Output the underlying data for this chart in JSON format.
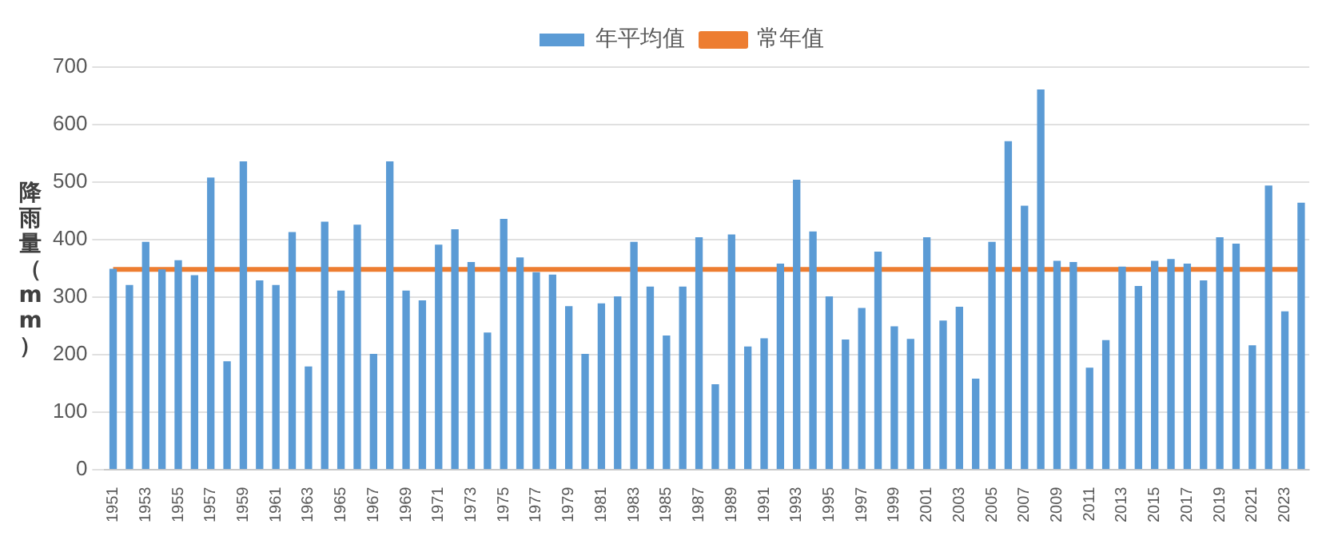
{
  "chart_data": {
    "type": "bar",
    "ylabel": "降雨量（mm）",
    "categories": [
      "1951",
      null,
      "1953",
      null,
      "1955",
      null,
      "1957",
      null,
      "1959",
      null,
      "1961",
      null,
      "1963",
      null,
      "1965",
      null,
      "1967",
      null,
      "1969",
      null,
      "1971",
      null,
      "1973",
      null,
      "1975",
      null,
      "1977",
      null,
      "1979",
      null,
      "1981",
      null,
      "1983",
      null,
      "1985",
      null,
      "1987",
      null,
      "1989",
      null,
      "1991",
      null,
      "1993",
      null,
      "1995",
      null,
      "1997",
      null,
      "1999",
      null,
      "2001",
      null,
      "2003",
      null,
      "2005",
      null,
      "2007",
      null,
      "2009",
      null,
      "2011",
      null,
      "2013",
      null,
      "2015",
      null,
      "2017",
      null,
      "2019",
      null,
      "2021",
      null,
      "2023",
      null
    ],
    "series": [
      {
        "name": "年平均值",
        "color": "#5b9bd5",
        "values": [
          348,
          320,
          395,
          347,
          363,
          337,
          507,
          187,
          535,
          328,
          320,
          412,
          178,
          430,
          310,
          425,
          200,
          535,
          310,
          293,
          390,
          417,
          360,
          237,
          435,
          368,
          342,
          338,
          283,
          200,
          288,
          300,
          395,
          317,
          232,
          317,
          403,
          147,
          408,
          213,
          227,
          357,
          503,
          413,
          300,
          225,
          280,
          378,
          248,
          226,
          403,
          258,
          282,
          157,
          395,
          570,
          458,
          660,
          362,
          360,
          176,
          224,
          352,
          318,
          362,
          365,
          357,
          328,
          403,
          392,
          215,
          493,
          274,
          463
        ]
      },
      {
        "name": "常年值",
        "type": "line",
        "color": "#ed7d31",
        "values": [
          348,
          348,
          348,
          348,
          348,
          348,
          348,
          348,
          348,
          348,
          348,
          348,
          348,
          348,
          348,
          348,
          348,
          348,
          348,
          348,
          348,
          348,
          348,
          348,
          348,
          348,
          348,
          348,
          348,
          348,
          348,
          348,
          348,
          348,
          348,
          348,
          348,
          348,
          348,
          348,
          348,
          348,
          348,
          348,
          348,
          348,
          348,
          348,
          348,
          348,
          348,
          348,
          348,
          348,
          348,
          348,
          348,
          348,
          348,
          348,
          348,
          348,
          348,
          348,
          348,
          348,
          348,
          348,
          348,
          348,
          348,
          348,
          348,
          348
        ]
      }
    ],
    "ylim": [
      0,
      700
    ],
    "yticks": [
      0,
      100,
      200,
      300,
      400,
      500,
      600,
      700
    ],
    "grid": "y",
    "legend": "top",
    "marker": "none"
  }
}
